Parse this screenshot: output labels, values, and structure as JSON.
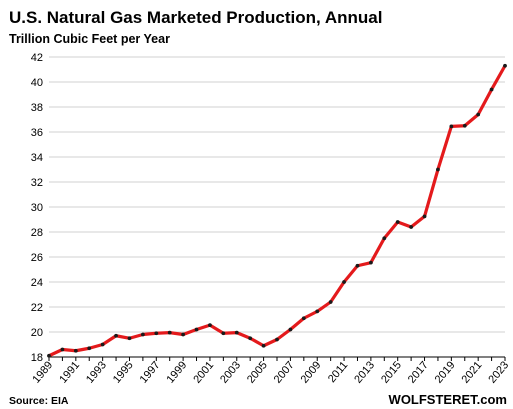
{
  "chart_data": {
    "type": "line",
    "title": "U.S. Natural Gas Marketed Production, Annual",
    "subtitle": "Trillion Cubic Feet per Year",
    "xlabel": "",
    "ylabel": "",
    "ylim": [
      18,
      42
    ],
    "yticks": [
      18,
      20,
      22,
      24,
      26,
      28,
      30,
      32,
      34,
      36,
      38,
      40,
      42
    ],
    "xlim": [
      1989,
      2023
    ],
    "xticks": [
      1989,
      1991,
      1993,
      1995,
      1997,
      1999,
      2001,
      2003,
      2005,
      2007,
      2009,
      2011,
      2013,
      2015,
      2017,
      2019,
      2021,
      2023
    ],
    "grid": "horizontal",
    "legend": "none",
    "series": [
      {
        "color": "#e41a1c",
        "marker_color": "#1a1a1a",
        "points": [
          {
            "x": 1989,
            "y": 18.1
          },
          {
            "x": 1990,
            "y": 18.6
          },
          {
            "x": 1991,
            "y": 18.5
          },
          {
            "x": 1992,
            "y": 18.7
          },
          {
            "x": 1993,
            "y": 19.0
          },
          {
            "x": 1994,
            "y": 19.7
          },
          {
            "x": 1995,
            "y": 19.5
          },
          {
            "x": 1996,
            "y": 19.8
          },
          {
            "x": 1997,
            "y": 19.9
          },
          {
            "x": 1998,
            "y": 19.95
          },
          {
            "x": 1999,
            "y": 19.8
          },
          {
            "x": 2000,
            "y": 20.2
          },
          {
            "x": 2001,
            "y": 20.55
          },
          {
            "x": 2002,
            "y": 19.9
          },
          {
            "x": 2003,
            "y": 19.95
          },
          {
            "x": 2004,
            "y": 19.5
          },
          {
            "x": 2005,
            "y": 18.9
          },
          {
            "x": 2006,
            "y": 19.4
          },
          {
            "x": 2007,
            "y": 20.2
          },
          {
            "x": 2008,
            "y": 21.1
          },
          {
            "x": 2009,
            "y": 21.65
          },
          {
            "x": 2010,
            "y": 22.4
          },
          {
            "x": 2011,
            "y": 24.0
          },
          {
            "x": 2012,
            "y": 25.3
          },
          {
            "x": 2013,
            "y": 25.55
          },
          {
            "x": 2014,
            "y": 27.5
          },
          {
            "x": 2015,
            "y": 28.8
          },
          {
            "x": 2016,
            "y": 28.4
          },
          {
            "x": 2017,
            "y": 29.25
          },
          {
            "x": 2018,
            "y": 33.0
          },
          {
            "x": 2019,
            "y": 36.45
          },
          {
            "x": 2020,
            "y": 36.5
          },
          {
            "x": 2021,
            "y": 37.4
          },
          {
            "x": 2022,
            "y": 39.4
          },
          {
            "x": 2023,
            "y": 41.3
          }
        ]
      }
    ],
    "source": "Source: EIA",
    "brand": "WOLFSTERET.com",
    "colors": {
      "gridline": "#d0d0d0",
      "axis": "#000000",
      "line": "#e41a1c",
      "marker": "#1a1a1a"
    }
  }
}
